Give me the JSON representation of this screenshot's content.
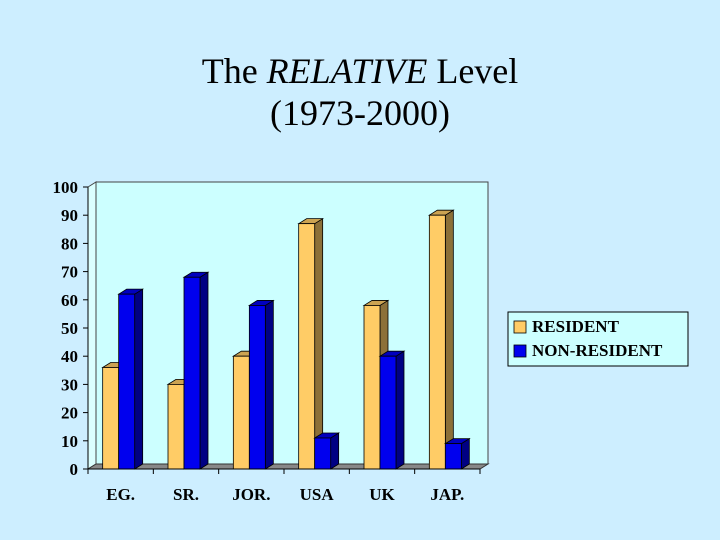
{
  "title": {
    "prefix": "The ",
    "emphasis": "RELATIVE",
    "suffix": " Level",
    "line2": "(1973-2000)"
  },
  "chart_data": {
    "type": "bar",
    "title": "The RELATIVE Level (1973-2000)",
    "xlabel": "",
    "ylabel": "",
    "categories": [
      "EG.",
      "SR.",
      "JOR.",
      "USA",
      "UK",
      "JAP."
    ],
    "series": [
      {
        "name": "RESIDENT",
        "values": [
          36,
          30,
          40,
          87,
          58,
          90
        ],
        "color": "#ffcc66"
      },
      {
        "name": "NON-RESIDENT",
        "values": [
          62,
          68,
          58,
          11,
          40,
          9
        ],
        "color": "#0000ee"
      }
    ],
    "ylim": [
      0,
      100
    ],
    "yticks": [
      0,
      10,
      20,
      30,
      40,
      50,
      60,
      70,
      80,
      90,
      100
    ],
    "grid": false,
    "legend_position": "right",
    "plot_background": "#ccffff",
    "page_background": "#cdeeff"
  }
}
